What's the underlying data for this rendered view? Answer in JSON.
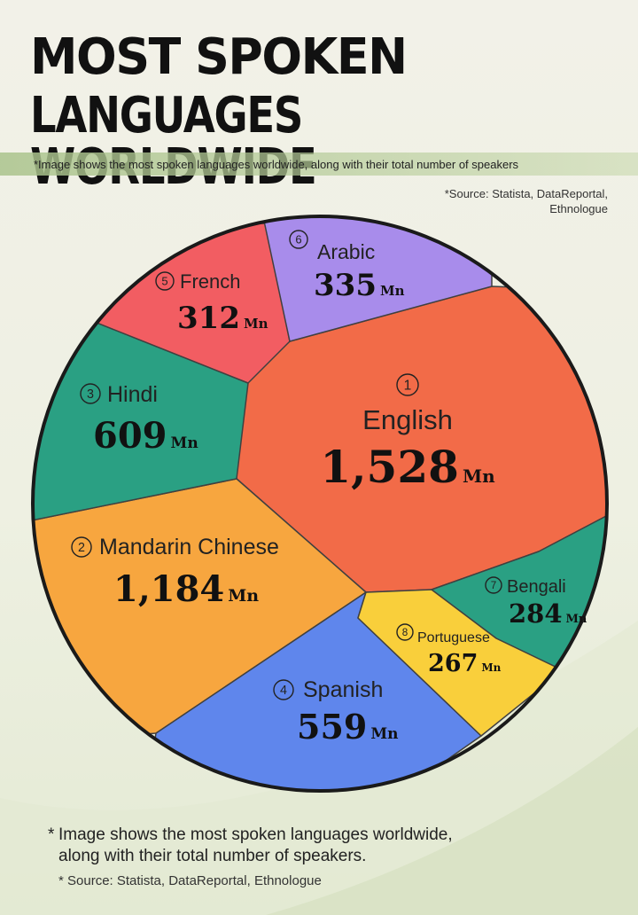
{
  "title_line1": "MOST SPOKEN",
  "title_line2": "LANGUAGES WORLDWIDE",
  "subtitle_note": "*Image shows the most spoken languages worldwide, along with their total number of speakers",
  "source_top_line1": "*Source: Statista, DataReportal,",
  "source_top_line2": "Ethnologue",
  "footer_note_star": "*",
  "footer_note_line1": "Image shows the most spoken languages worldwide,",
  "footer_note_line2": "along with their total number of speakers.",
  "footer_source": "* Source: Statista, DataReportal, Ethnologue",
  "chart_data": {
    "type": "pie",
    "title": "MOST SPOKEN LANGUAGES WORLDWIDE",
    "unit": "Mn",
    "slices": [
      {
        "rank": 1,
        "name": "English",
        "value": 1528,
        "value_label": "1,528",
        "color": "#f26b48"
      },
      {
        "rank": 2,
        "name": "Mandarin Chinese",
        "value": 1184,
        "value_label": "1,184",
        "color": "#f7a63f"
      },
      {
        "rank": 3,
        "name": "Hindi",
        "value": 609,
        "value_label": "609",
        "color": "#2aa083"
      },
      {
        "rank": 4,
        "name": "Spanish",
        "value": 559,
        "value_label": "559",
        "color": "#5f86ec"
      },
      {
        "rank": 5,
        "name": "French",
        "value": 312,
        "value_label": "312",
        "color": "#f25d62"
      },
      {
        "rank": 6,
        "name": "Arabic",
        "value": 335,
        "value_label": "335",
        "color": "#a88ceb"
      },
      {
        "rank": 7,
        "name": "Bengali",
        "value": 284,
        "value_label": "284",
        "color": "#2aa083"
      },
      {
        "rank": 8,
        "name": "Portuguese",
        "value": 267,
        "value_label": "267",
        "color": "#f9cf3b"
      }
    ]
  }
}
